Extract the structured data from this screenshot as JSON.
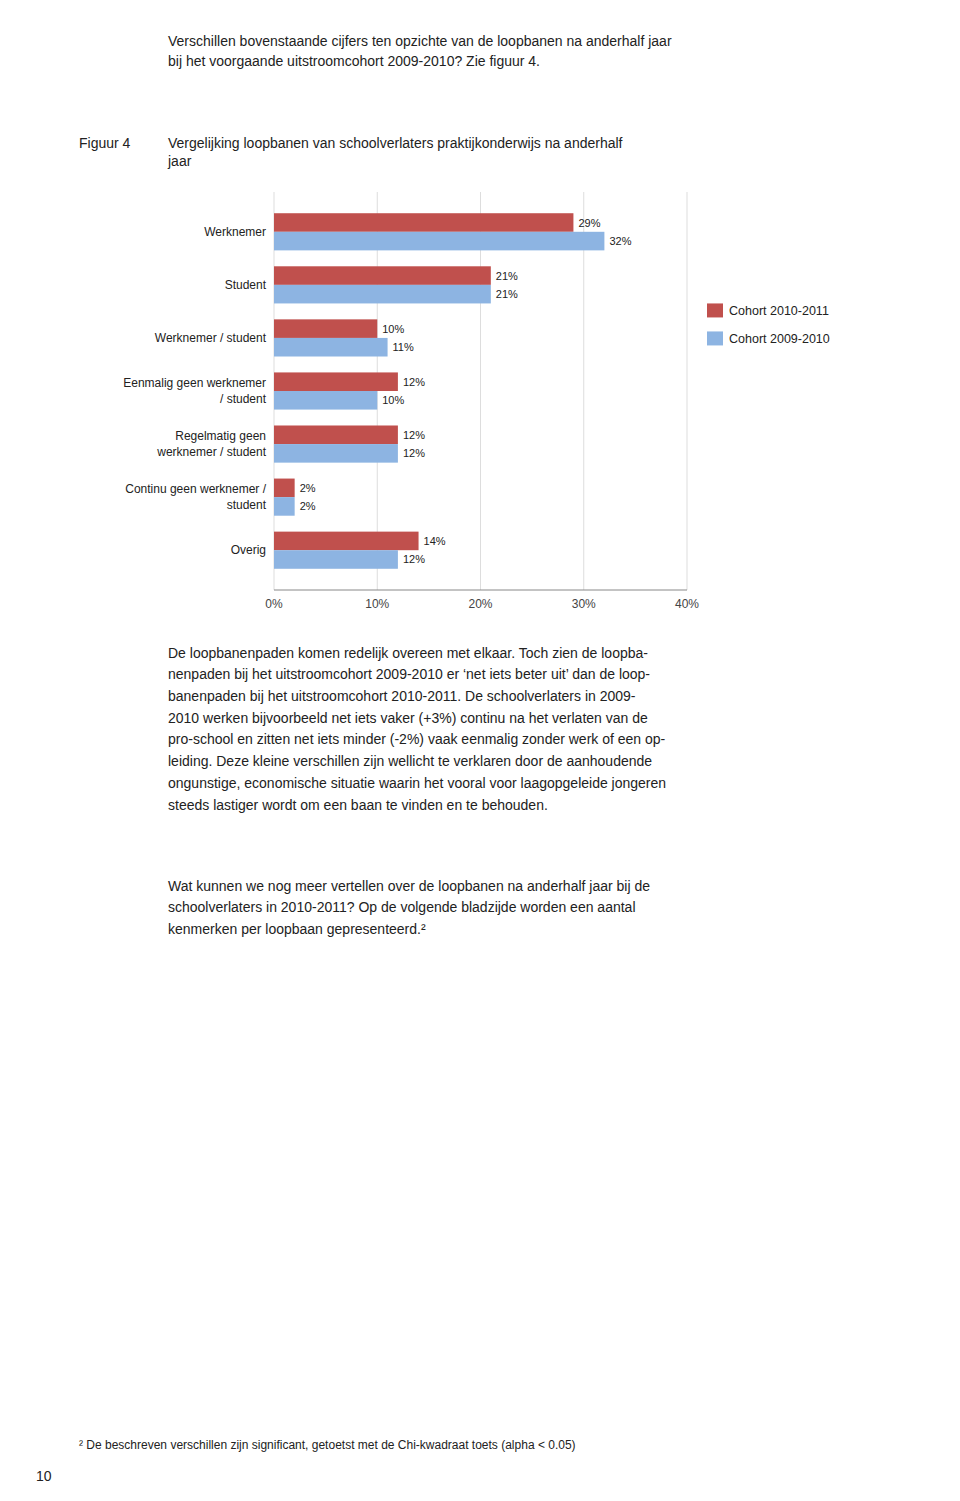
{
  "chart_data": {
    "type": "bar",
    "orientation": "horizontal",
    "title": "Vergelijking loopbanen van schoolverlaters praktijkonderwijs na anderhalf\njaar",
    "categories": [
      "Werknemer",
      "Student",
      "Werknemer / student",
      "Eenmalig geen werknemer\n/ student",
      "Regelmatig geen\nwerknemer / student",
      "Continu geen werknemer /\nstudent",
      "Overig"
    ],
    "series": [
      {
        "name": "Cohort 2010-2011",
        "color": "#C0504D",
        "values": [
          29,
          21,
          10,
          12,
          12,
          2,
          14
        ],
        "value_labels": [
          "29%",
          "21%",
          "10%",
          "12%",
          "12%",
          "2%",
          "14%"
        ]
      },
      {
        "name": "Cohort 2009-2010",
        "color": "#8DB4E2",
        "values": [
          32,
          21,
          11,
          10,
          12,
          2,
          12
        ],
        "value_labels": [
          "32%",
          "21%",
          "11%",
          "10%",
          "12%",
          "2%",
          "12%"
        ]
      }
    ],
    "xlim": [
      0,
      40
    ],
    "xticks": [
      {
        "value": 0,
        "label": "0%"
      },
      {
        "value": 10,
        "label": "10%"
      },
      {
        "value": 20,
        "label": "20%"
      },
      {
        "value": 30,
        "label": "30%"
      },
      {
        "value": 40,
        "label": "40%"
      }
    ],
    "grid": true,
    "legend": "right",
    "data_labels": true
  },
  "figure_label": "Figuur 4",
  "intro_text": "Verschillen bovenstaande cijfers ten opzichte van de loopbanen na anderhalf jaar\nbij het voorgaande uitstroomcohort 2009-2010? Zie figuur 4.",
  "body_text": "De loopbanenpaden komen redelijk overeen met elkaar. Toch zien de loopba-\nnenpaden bij het uitstroomcohort 2009-2010 er ‘net iets beter uit’ dan de loop-\nbanenpaden bij het uitstroomcohort 2010-2011. De schoolverlaters in 2009-\n2010 werken bijvoorbeeld net iets vaker (+3%) continu na het verlaten van de\npro-school en zitten net iets minder (-2%) vaak eenmalig zonder werk of een op-\nleiding. Deze kleine verschillen zijn wellicht te verklaren door de aanhoudende\nongunstige, economische situatie waarin het vooral voor laagopgeleide jongeren\nsteeds lastiger wordt om een baan te vinden en te behouden.",
  "body_text2": "Wat kunnen we nog meer vertellen over de loopbanen na anderhalf jaar bij de\nschoolverlaters in 2010-2011? Op de volgende bladzijde worden een aantal\nkenmerken per loopbaan gepresenteerd.²",
  "footnote": "²  De beschreven verschillen zijn significant, getoetst met de Chi-kwadraat toets (alpha < 0.05)",
  "page_number": "10"
}
